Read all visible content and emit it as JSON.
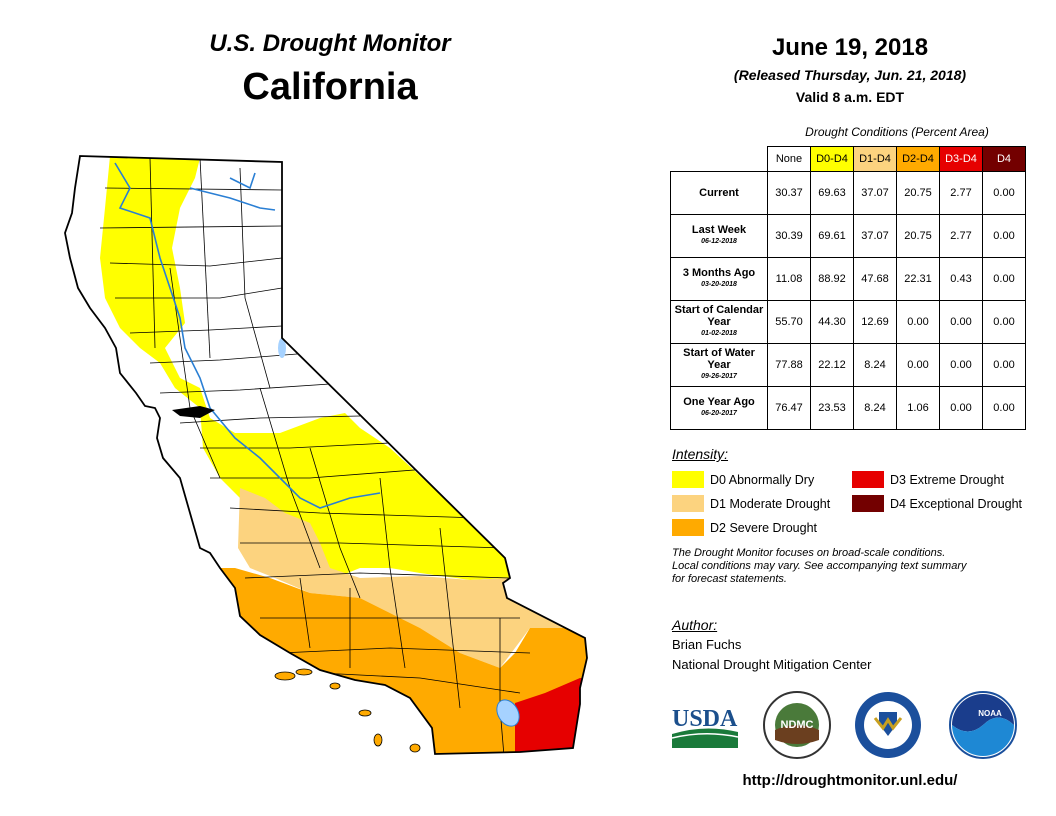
{
  "header": {
    "monitor_title": "U.S. Drought Monitor",
    "state": "California",
    "date": "June 19, 2018",
    "released": "(Released Thursday, Jun. 21, 2018)",
    "valid": "Valid 8 a.m. EDT"
  },
  "table": {
    "caption": "Drought Conditions (Percent Area)",
    "columns": [
      {
        "label": "None",
        "color": "#ffffff",
        "text_color": "#000000"
      },
      {
        "label": "D0-D4",
        "color": "#ffff00",
        "text_color": "#000000"
      },
      {
        "label": "D1-D4",
        "color": "#fcd37f",
        "text_color": "#000000"
      },
      {
        "label": "D2-D4",
        "color": "#ffaa00",
        "text_color": "#000000"
      },
      {
        "label": "D3-D4",
        "color": "#e60000",
        "text_color": "#ffffff"
      },
      {
        "label": "D4",
        "color": "#730000",
        "text_color": "#ffffff"
      }
    ],
    "rows": [
      {
        "label": "Current",
        "sub": "",
        "values": [
          "30.37",
          "69.63",
          "37.07",
          "20.75",
          "2.77",
          "0.00"
        ]
      },
      {
        "label": "Last Week",
        "sub": "06-12-2018",
        "values": [
          "30.39",
          "69.61",
          "37.07",
          "20.75",
          "2.77",
          "0.00"
        ]
      },
      {
        "label": "3 Months Ago",
        "sub": "03-20-2018",
        "values": [
          "11.08",
          "88.92",
          "47.68",
          "22.31",
          "0.43",
          "0.00"
        ]
      },
      {
        "label": "Start of Calendar Year",
        "sub": "01-02-2018",
        "values": [
          "55.70",
          "44.30",
          "12.69",
          "0.00",
          "0.00",
          "0.00"
        ]
      },
      {
        "label": "Start of Water Year",
        "sub": "09-26-2017",
        "values": [
          "77.88",
          "22.12",
          "8.24",
          "0.00",
          "0.00",
          "0.00"
        ]
      },
      {
        "label": "One Year Ago",
        "sub": "06-20-2017",
        "values": [
          "76.47",
          "23.53",
          "8.24",
          "1.06",
          "0.00",
          "0.00"
        ]
      }
    ]
  },
  "legend": {
    "title": "Intensity:",
    "items": [
      {
        "label": "D0 Abnormally Dry",
        "color": "#ffff00"
      },
      {
        "label": "D1 Moderate Drought",
        "color": "#fcd37f"
      },
      {
        "label": "D2 Severe Drought",
        "color": "#ffaa00"
      },
      {
        "label": "D3 Extreme Drought",
        "color": "#e60000"
      },
      {
        "label": "D4 Exceptional Drought",
        "color": "#730000"
      }
    ]
  },
  "note": {
    "line1": "The Drought Monitor focuses on broad-scale conditions.",
    "line2": "Local conditions may vary. See accompanying text summary",
    "line3": "for forecast statements."
  },
  "author": {
    "title": "Author:",
    "name": "Brian Fuchs",
    "org": "National Drought Mitigation Center"
  },
  "logos": {
    "usda_text": "USDA",
    "ndmc_text": "NDMC",
    "noaa_text": "NOAA"
  },
  "url": "http://droughtmonitor.unl.edu/",
  "map": {
    "colors": {
      "none": "#ffffff",
      "d0": "#ffff00",
      "d1": "#fcd37f",
      "d2": "#ffaa00",
      "d3": "#e60000",
      "water": "#a6d2ff",
      "river": "#2a7fd4"
    }
  }
}
